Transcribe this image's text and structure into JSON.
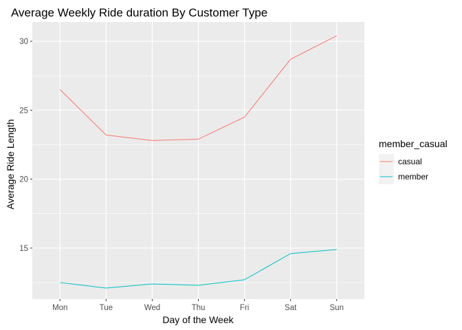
{
  "chart_data": {
    "type": "line",
    "title": "Average Weekly Ride duration By Customer Type",
    "xlabel": "Day of the Week",
    "ylabel": "Average Ride Length",
    "categories": [
      "Mon",
      "Tue",
      "Wed",
      "Thu",
      "Fri",
      "Sat",
      "Sun"
    ],
    "series": [
      {
        "name": "casual",
        "color": "#F8766D",
        "values": [
          26.5,
          23.2,
          22.8,
          22.9,
          24.5,
          28.7,
          30.4
        ]
      },
      {
        "name": "member",
        "color": "#00BFC4",
        "values": [
          12.5,
          12.1,
          12.4,
          12.3,
          12.7,
          14.6,
          14.9
        ]
      }
    ],
    "ylim": [
      11.3,
      31.4
    ],
    "yticks": [
      15,
      20,
      25,
      30
    ],
    "ytick_labels": [
      "15",
      "20",
      "25",
      "30"
    ],
    "grid": true,
    "panel_background": "#EBEBEB",
    "grid_color": "#FFFFFF",
    "legend": {
      "title": "member_casual",
      "position": "right"
    }
  }
}
